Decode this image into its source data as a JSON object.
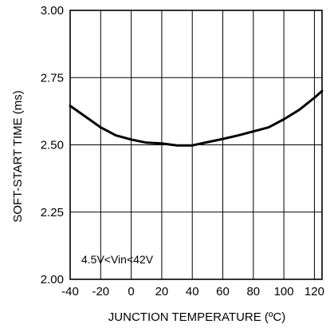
{
  "chart_data": {
    "type": "line",
    "title": "",
    "xlabel": "JUNCTION TEMPERATURE (ºC)",
    "ylabel": "SOFT-START TIME (ms)",
    "xlim": [
      -40,
      125
    ],
    "ylim": [
      2.0,
      3.0
    ],
    "x_ticks": [
      -40,
      -20,
      0,
      20,
      40,
      60,
      80,
      100,
      120
    ],
    "y_ticks": [
      2.0,
      2.25,
      2.5,
      2.75,
      3.0
    ],
    "x_tick_labels": [
      "-40",
      "-20",
      "0",
      "20",
      "40",
      "60",
      "80",
      "100",
      "120"
    ],
    "y_tick_labels": [
      "2.00",
      "2.25",
      "2.50",
      "2.75",
      "3.00"
    ],
    "grid": true,
    "annotation": "4.5V<Vin<42V",
    "series": [
      {
        "color": "#000000",
        "x": [
          -40,
          -30,
          -20,
          -10,
          0,
          10,
          20,
          30,
          40,
          50,
          60,
          70,
          80,
          90,
          100,
          110,
          120,
          125
        ],
        "y": [
          2.645,
          2.605,
          2.565,
          2.535,
          2.52,
          2.508,
          2.505,
          2.498,
          2.498,
          2.51,
          2.522,
          2.535,
          2.55,
          2.565,
          2.595,
          2.63,
          2.675,
          2.7
        ]
      }
    ]
  }
}
